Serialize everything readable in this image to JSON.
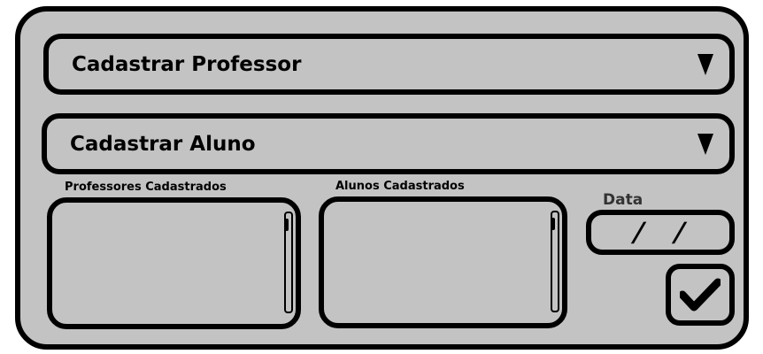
{
  "form": {
    "dropdown_professor": {
      "label": "Cadastrar Professor"
    },
    "dropdown_aluno": {
      "label": "Cadastrar Aluno"
    },
    "list_professores": {
      "caption": "Professores Cadastrados"
    },
    "list_alunos": {
      "caption": "Alunos Cadastrados"
    },
    "date": {
      "label": "Data",
      "separator": "/"
    },
    "confirm": {
      "icon": "checkmark-icon"
    }
  }
}
